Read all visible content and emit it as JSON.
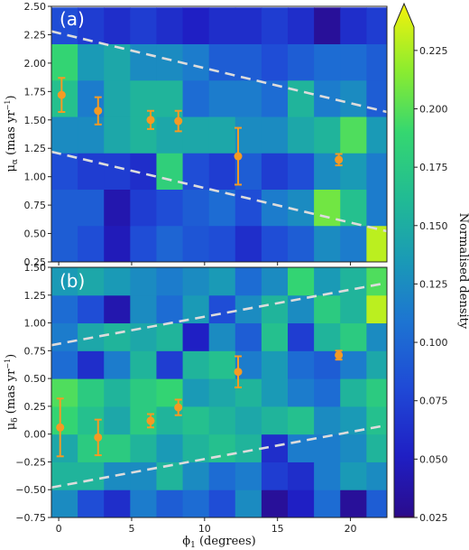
{
  "chart_data": [
    {
      "type": "heatmap",
      "panel_label": "(a)",
      "xlabel": "",
      "ylabel_main": "μ",
      "ylabel_sub": "α",
      "ylabel_units": "(mas yr",
      "ylabel_units_sup": "−1",
      "ylabel_units_close": ")",
      "xlim": [
        -0.5,
        22.5
      ],
      "ylim": [
        0.25,
        2.5
      ],
      "yticks": [
        "0.25",
        "0.50",
        "0.75",
        "1.00",
        "1.25",
        "1.50",
        "1.75",
        "2.00",
        "2.25",
        "2.50"
      ],
      "grid": {
        "x_edges_start": -0.5,
        "x_edge_step": 1.8,
        "cols": 13,
        "y_edges_start": 0.25,
        "y_edge_step": 0.32,
        "rows": 7
      },
      "cells": [
        [
          0.09,
          0.08,
          0.045,
          0.08,
          0.095,
          0.085,
          0.08,
          0.06,
          0.08,
          0.09,
          0.12,
          0.11,
          0.22
        ],
        [
          0.09,
          0.09,
          0.04,
          0.07,
          0.08,
          0.09,
          0.1,
          0.08,
          0.11,
          0.12,
          0.2,
          0.16,
          0.11
        ],
        [
          0.08,
          0.07,
          0.07,
          0.06,
          0.175,
          0.08,
          0.07,
          0.09,
          0.07,
          0.08,
          0.12,
          0.13,
          0.11
        ],
        [
          0.12,
          0.12,
          0.14,
          0.15,
          0.14,
          0.14,
          0.14,
          0.12,
          0.12,
          0.14,
          0.15,
          0.19,
          0.13
        ],
        [
          0.16,
          0.11,
          0.14,
          0.15,
          0.15,
          0.1,
          0.11,
          0.11,
          0.1,
          0.15,
          0.11,
          0.12,
          0.09
        ],
        [
          0.18,
          0.13,
          0.14,
          0.12,
          0.12,
          0.11,
          0.09,
          0.09,
          0.08,
          0.09,
          0.1,
          0.1,
          0.09
        ],
        [
          0.08,
          0.07,
          0.06,
          0.07,
          0.06,
          0.05,
          0.06,
          0.06,
          0.07,
          0.06,
          0.03,
          0.06,
          0.07
        ]
      ],
      "points": [
        {
          "x": 0.2,
          "y": 1.72,
          "err": 0.15
        },
        {
          "x": 2.7,
          "y": 1.58,
          "err": 0.12
        },
        {
          "x": 6.3,
          "y": 1.5,
          "err": 0.08
        },
        {
          "x": 8.2,
          "y": 1.49,
          "err": 0.09
        },
        {
          "x": 12.3,
          "y": 1.18,
          "err": 0.25
        },
        {
          "x": 19.2,
          "y": 1.15,
          "err": 0.05
        }
      ],
      "dashed_lines": [
        {
          "x": [
            -0.5,
            22.5
          ],
          "y": [
            2.28,
            1.57
          ]
        },
        {
          "x": [
            -0.5,
            22.5
          ],
          "y": [
            1.22,
            0.52
          ]
        }
      ]
    },
    {
      "type": "heatmap",
      "panel_label": "(b)",
      "xlabel_main": "ϕ",
      "xlabel_sub": "1",
      "xlabel_units": "(degrees)",
      "ylabel_main": "μ",
      "ylabel_sub": "δ",
      "ylabel_units": "(mas yr",
      "ylabel_units_sup": "−1",
      "ylabel_units_close": ")",
      "xlim": [
        -0.5,
        22.5
      ],
      "ylim": [
        -0.75,
        1.5
      ],
      "xticks": [
        "0",
        "5",
        "10",
        "15",
        "20"
      ],
      "yticks": [
        "−0.75",
        "−0.50",
        "−0.25",
        "0.00",
        "0.25",
        "0.50",
        "0.75",
        "1.00",
        "1.25",
        "1.50"
      ],
      "grid": {
        "x_edges_start": -0.5,
        "x_edge_step": 1.8,
        "cols": 13,
        "y_edges_start": -0.75,
        "y_edge_step": 0.25,
        "rows": 9
      },
      "cells": [
        [
          0.12,
          0.08,
          0.06,
          0.11,
          0.09,
          0.1,
          0.08,
          0.12,
          0.03,
          0.05,
          0.1,
          0.03,
          0.09
        ],
        [
          0.15,
          0.15,
          0.12,
          0.12,
          0.15,
          0.12,
          0.1,
          0.11,
          0.07,
          0.06,
          0.11,
          0.13,
          0.12
        ],
        [
          0.14,
          0.17,
          0.17,
          0.15,
          0.13,
          0.15,
          0.16,
          0.15,
          0.06,
          0.11,
          0.11,
          0.12,
          0.15
        ],
        [
          0.18,
          0.16,
          0.14,
          0.17,
          0.15,
          0.16,
          0.15,
          0.14,
          0.15,
          0.16,
          0.12,
          0.13,
          0.16
        ],
        [
          0.19,
          0.17,
          0.15,
          0.17,
          0.18,
          0.13,
          0.14,
          0.15,
          0.13,
          0.11,
          0.1,
          0.15,
          0.17
        ],
        [
          0.1,
          0.06,
          0.11,
          0.15,
          0.07,
          0.15,
          0.16,
          0.11,
          0.13,
          0.1,
          0.09,
          0.11,
          0.14
        ],
        [
          0.11,
          0.14,
          0.15,
          0.14,
          0.15,
          0.05,
          0.12,
          0.09,
          0.16,
          0.07,
          0.15,
          0.17,
          0.12
        ],
        [
          0.1,
          0.08,
          0.04,
          0.12,
          0.1,
          0.13,
          0.08,
          0.12,
          0.15,
          0.12,
          0.17,
          0.15,
          0.22
        ],
        [
          0.13,
          0.14,
          0.13,
          0.12,
          0.11,
          0.12,
          0.13,
          0.1,
          0.12,
          0.18,
          0.13,
          0.15,
          0.19
        ]
      ],
      "points": [
        {
          "x": 0.1,
          "y": 0.06,
          "err": 0.26
        },
        {
          "x": 2.7,
          "y": -0.03,
          "err": 0.16
        },
        {
          "x": 6.3,
          "y": 0.12,
          "err": 0.06
        },
        {
          "x": 8.2,
          "y": 0.24,
          "err": 0.07
        },
        {
          "x": 12.3,
          "y": 0.56,
          "err": 0.14
        },
        {
          "x": 19.2,
          "y": 0.71,
          "err": 0.04
        }
      ],
      "dashed_lines": [
        {
          "x": [
            -0.5,
            22.5
          ],
          "y": [
            0.8,
            1.36
          ]
        },
        {
          "x": [
            -0.5,
            22.5
          ],
          "y": [
            -0.48,
            0.08
          ]
        }
      ]
    }
  ],
  "colorbar": {
    "label": "Normalised density",
    "colormap": "viridis-like",
    "range": [
      0.025,
      0.235
    ],
    "ticks": [
      "0.025",
      "0.050",
      "0.075",
      "0.100",
      "0.125",
      "0.150",
      "0.175",
      "0.200",
      "0.225"
    ],
    "extend": "max"
  },
  "colors": {
    "points": "#f59a23",
    "dashed": "#dcdcdc"
  }
}
